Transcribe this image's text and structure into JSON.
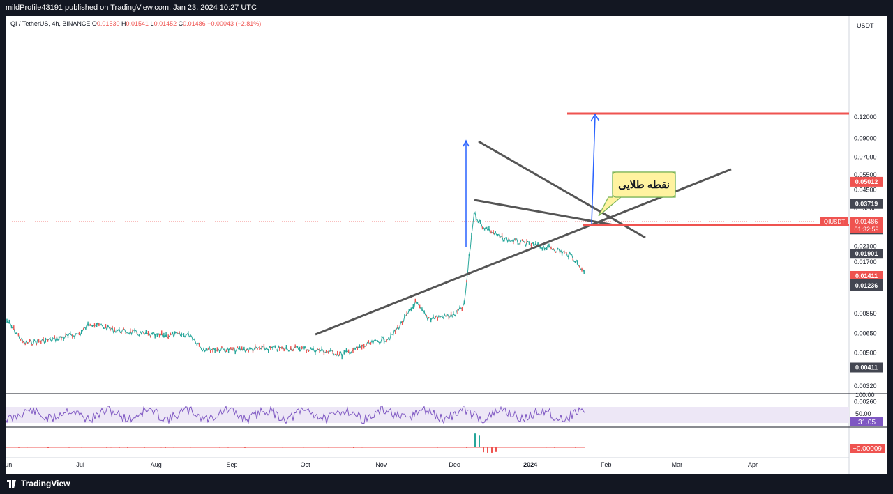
{
  "header": {
    "publisher": "mildProfile43191 published on TradingView.com, Jan 23, 2024 10:27 UTC"
  },
  "legend": {
    "symbol": "QI / TetherUS, 4h, BINANCE",
    "open_label": "O",
    "open": "0.01530",
    "high_label": "H",
    "high": "0.01541",
    "low_label": "L",
    "low": "0.01452",
    "close_label": "C",
    "close": "0.01486",
    "change": "−0.00043 (−2.81%)"
  },
  "footer": {
    "brand": "TradingView"
  },
  "chart_data": {
    "type": "candlestick",
    "currency": "USDT",
    "y_scale": "log",
    "y_ticks": [
      "0.12000",
      "0.09000",
      "0.07000",
      "0.05500",
      "0.04500",
      "0.03500",
      "0.02100",
      "0.01700",
      "0.00850",
      "0.00650",
      "0.00500",
      "0.00320",
      "0.00260"
    ],
    "x_ticks": [
      "Jun",
      "Jul",
      "Aug",
      "Sep",
      "Oct",
      "Nov",
      "Dec",
      "2024",
      "Feb",
      "Mar",
      "Apr"
    ],
    "price_series": [
      [
        "2023-06-01",
        0.0077
      ],
      [
        "2023-06-08",
        0.0057
      ],
      [
        "2023-06-20",
        0.006
      ],
      [
        "2023-07-01",
        0.0065
      ],
      [
        "2023-07-05",
        0.0075
      ],
      [
        "2023-07-15",
        0.0068
      ],
      [
        "2023-08-01",
        0.0063
      ],
      [
        "2023-08-15",
        0.0064
      ],
      [
        "2023-08-20",
        0.0053
      ],
      [
        "2023-09-01",
        0.0052
      ],
      [
        "2023-09-15",
        0.0053
      ],
      [
        "2023-10-01",
        0.0053
      ],
      [
        "2023-10-10",
        0.0051
      ],
      [
        "2023-10-16",
        0.0049
      ],
      [
        "2023-10-25",
        0.0055
      ],
      [
        "2023-11-05",
        0.0062
      ],
      [
        "2023-11-12",
        0.0084
      ],
      [
        "2023-11-15",
        0.0098
      ],
      [
        "2023-11-20",
        0.008
      ],
      [
        "2023-12-01",
        0.0083
      ],
      [
        "2023-12-05",
        0.0095
      ],
      [
        "2023-12-07",
        0.018
      ],
      [
        "2023-12-09",
        0.033
      ],
      [
        "2023-12-12",
        0.028
      ],
      [
        "2023-12-20",
        0.0235
      ],
      [
        "2024-01-01",
        0.0215
      ],
      [
        "2024-01-10",
        0.0205
      ],
      [
        "2024-01-18",
        0.0185
      ],
      [
        "2024-01-23",
        0.01486
      ]
    ],
    "last_price_label": "QIUSDT",
    "last_price": "0.01486",
    "countdown": "01:32:59",
    "price_labels": [
      {
        "value": "0.05012",
        "color": "#ef5350"
      },
      {
        "value": "0.03719",
        "color": "#434651"
      },
      {
        "value": "0.02639",
        "color": "#434651"
      },
      {
        "value": "0.01901",
        "color": "#434651"
      },
      {
        "value": "0.01411",
        "color": "#ef5350"
      },
      {
        "value": "0.01262",
        "color": "#434651"
      },
      {
        "value": "0.01236",
        "color": "#434651"
      },
      {
        "value": "0.00411",
        "color": "#434651"
      }
    ],
    "drawings": {
      "horizontal_levels": [
        0.05012,
        0.01411
      ],
      "annotation": "نقطه طلایی",
      "arrows_color": "#2962ff",
      "lines_color": "#555555",
      "levels_color": "#ef5350"
    },
    "rsi": {
      "ticks": [
        "100.00",
        "50.00"
      ],
      "value": "31.05",
      "color": "#7e57c2"
    },
    "macd": {
      "value": "−0.00009",
      "color": "#ef5350"
    }
  }
}
